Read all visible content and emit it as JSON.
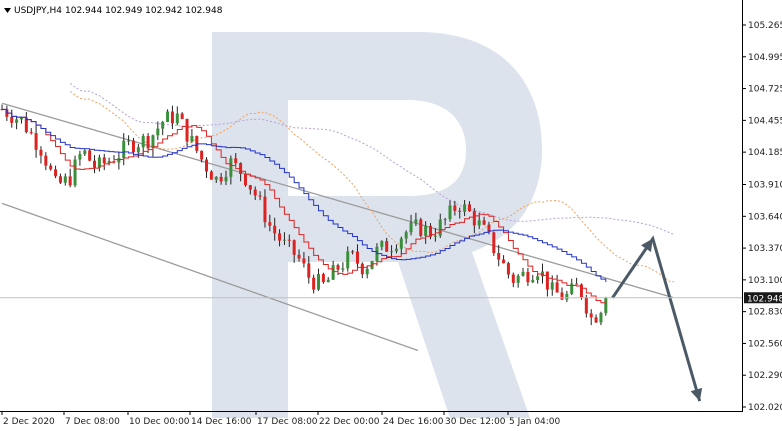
{
  "header": {
    "symbol": "USDJPY,H4",
    "ohlc": "102.944 102.949 102.942 102.948"
  },
  "watermark_icon": "r-logo-watermark",
  "colors": {
    "up_candle": "#3a8f3a",
    "down_candle": "#dd2222",
    "blue_line": "#2233cc",
    "red_line": "#dd2222",
    "cloud_orange": "#f0a060",
    "cloud_violet": "#b8a0d8",
    "channel": "#9c9c9c",
    "arrow": "#4b5a66",
    "price_tag_bg": "#1a1a1a"
  },
  "chart_data": {
    "type": "candlestick",
    "symbol": "USDJPY",
    "timeframe": "H4",
    "ylim": [
      102.02,
      105.35
    ],
    "y_ticks": [
      "105.265",
      "104.995",
      "104.725",
      "104.455",
      "104.185",
      "103.910",
      "103.640",
      "103.370",
      "103.100",
      "102.830",
      "102.560",
      "102.290",
      "102.020"
    ],
    "x_ticks": [
      "2 Dec 2020",
      "7 Dec 08:00",
      "10 Dec 00:00",
      "14 Dec 16:00",
      "17 Dec 08:00",
      "22 Dec 00:00",
      "24 Dec 16:00",
      "30 Dec 12:00",
      "5 Jan 04:00"
    ],
    "last_price": "102.948",
    "close_path": [
      [
        0,
        104.55
      ],
      [
        3,
        104.45
      ],
      [
        6,
        104.2
      ],
      [
        8,
        103.9
      ],
      [
        10,
        103.95
      ],
      [
        12,
        104.2
      ],
      [
        14,
        104.05
      ],
      [
        17,
        104.15
      ],
      [
        19,
        104.25
      ],
      [
        22,
        104.3
      ],
      [
        24,
        104.45
      ],
      [
        26,
        104.5
      ],
      [
        28,
        104.3
      ],
      [
        30,
        104.1
      ],
      [
        32,
        103.95
      ],
      [
        34,
        104.1
      ],
      [
        36,
        104.0
      ],
      [
        38,
        103.8
      ],
      [
        40,
        103.55
      ],
      [
        42,
        103.4
      ],
      [
        44,
        103.3
      ],
      [
        46,
        103.1
      ],
      [
        48,
        103.05
      ],
      [
        50,
        103.2
      ],
      [
        52,
        103.3
      ],
      [
        54,
        103.2
      ],
      [
        56,
        103.35
      ],
      [
        58,
        103.4
      ],
      [
        60,
        103.5
      ],
      [
        62,
        103.55
      ],
      [
        64,
        103.5
      ],
      [
        66,
        103.6
      ],
      [
        68,
        103.75
      ],
      [
        70,
        103.65
      ],
      [
        72,
        103.5
      ],
      [
        74,
        103.3
      ],
      [
        76,
        103.1
      ],
      [
        78,
        103.15
      ],
      [
        80,
        103.2
      ],
      [
        82,
        103.0
      ],
      [
        84,
        102.95
      ],
      [
        86,
        103.05
      ],
      [
        88,
        102.75
      ],
      [
        90,
        102.948
      ]
    ],
    "channel_upper": [
      [
        0,
        104.6
      ],
      [
        100,
        102.95
      ]
    ],
    "channel_lower": [
      [
        0,
        103.75
      ],
      [
        62,
        102.5
      ]
    ],
    "arrow_path": [
      [
        91,
        102.948
      ],
      [
        97,
        103.45
      ],
      [
        104,
        102.07
      ]
    ]
  }
}
